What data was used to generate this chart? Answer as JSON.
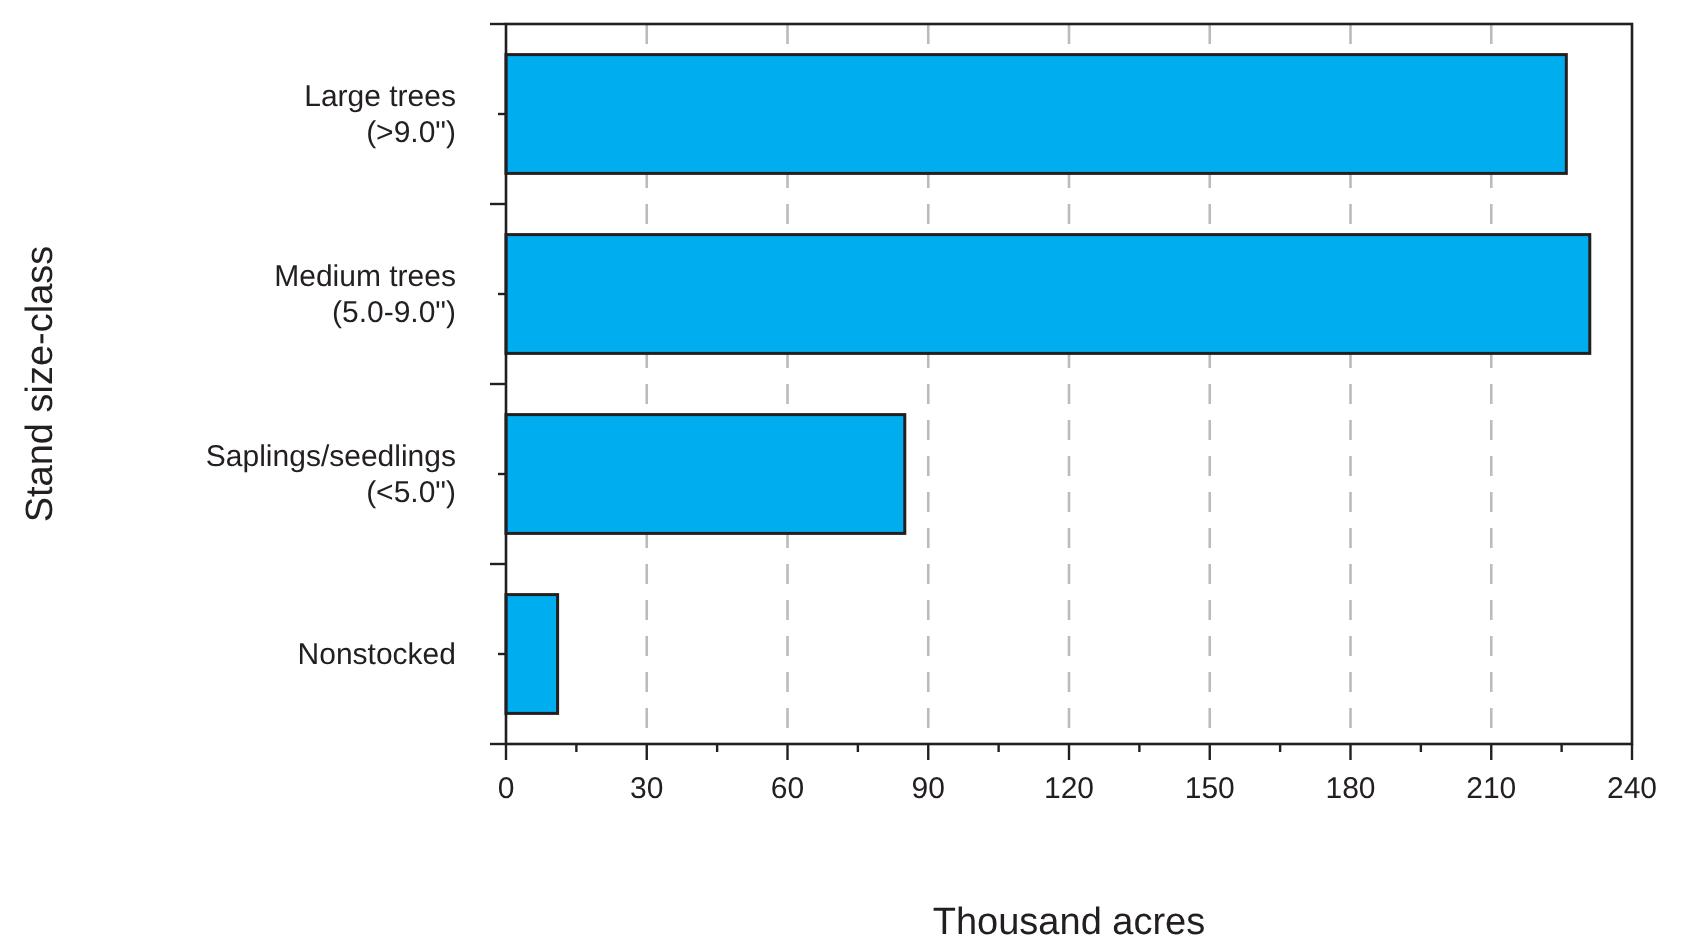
{
  "chart_data": {
    "type": "bar",
    "orientation": "horizontal",
    "categories": [
      "Large trees\n(>9.0\")",
      "Medium trees\n(5.0-9.0\")",
      "Saplings/seedlings\n(<5.0\")",
      "Nonstocked"
    ],
    "values": [
      226,
      231,
      85,
      11
    ],
    "color": "#00aeef",
    "xlabel": "Thousand acres",
    "ylabel": "Stand size-class",
    "xlim": [
      0,
      240
    ],
    "xticks": [
      0,
      {
        "value": 15,
        "label": null
      },
      30,
      {
        "value": 45,
        "label": null
      },
      60,
      {
        "value": 75,
        "label": null
      },
      90,
      {
        "value": 105,
        "label": null
      },
      120,
      {
        "value": 135,
        "label": null
      },
      150,
      {
        "value": 165,
        "label": null
      },
      180,
      {
        "value": 195,
        "label": null
      },
      210,
      {
        "value": 225,
        "label": null
      },
      240
    ],
    "grid": "x"
  }
}
